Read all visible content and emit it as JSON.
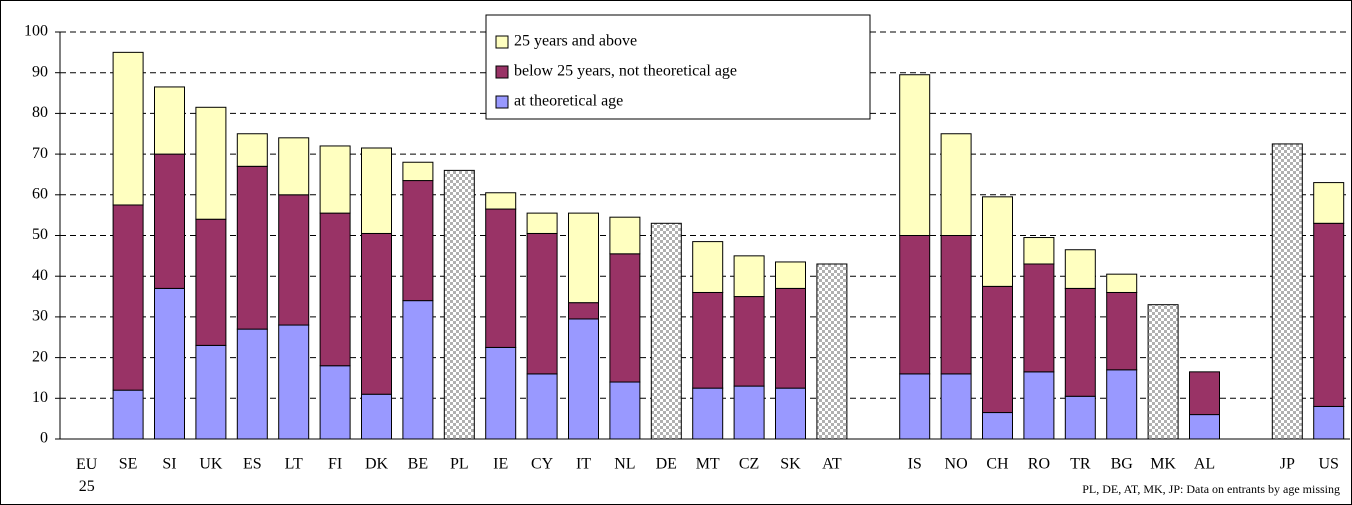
{
  "chart_data": {
    "type": "stacked_bar",
    "categories": [
      "EU 25",
      "SE",
      "SI",
      "UK",
      "ES",
      "LT",
      "FI",
      "DK",
      "BE",
      "PL",
      "IE",
      "CY",
      "IT",
      "NL",
      "DE",
      "MT",
      "CZ",
      "SK",
      "AT",
      null,
      "IS",
      "NO",
      "CH",
      "RO",
      "TR",
      "BG",
      "MK",
      "AL",
      null,
      "JP",
      "US"
    ],
    "series": [
      {
        "name": "at theoretical age",
        "color": "#9999ff",
        "values": [
          null,
          12,
          37,
          23,
          27,
          28,
          18,
          11,
          34,
          null,
          22.5,
          16,
          29.5,
          14,
          null,
          12.5,
          13,
          12.5,
          null,
          null,
          16,
          16,
          6.5,
          16.5,
          10.5,
          17,
          null,
          6,
          null,
          null,
          8
        ]
      },
      {
        "name": "below 25 years, not theoretical age",
        "color": "#993366",
        "values": [
          null,
          45.5,
          33,
          31,
          40,
          32,
          37.5,
          39.5,
          29.5,
          null,
          34,
          34.5,
          4,
          31.5,
          null,
          23.5,
          22,
          24.5,
          null,
          null,
          34,
          34,
          31,
          26.5,
          26.5,
          19,
          null,
          10.5,
          null,
          null,
          45
        ]
      },
      {
        "name": "25 years and above",
        "color": "#ffffc0",
        "values": [
          null,
          37.5,
          16.5,
          27.5,
          8,
          14,
          16.5,
          21,
          4.5,
          null,
          4,
          5,
          22,
          9,
          null,
          12.5,
          10,
          6.5,
          null,
          null,
          39.5,
          25,
          22,
          6.5,
          9.5,
          4.5,
          null,
          null,
          null,
          null,
          10
        ]
      },
      {
        "pattern": "hatched",
        "values": [
          null,
          null,
          null,
          null,
          null,
          null,
          null,
          null,
          null,
          66,
          null,
          null,
          null,
          null,
          53,
          null,
          null,
          null,
          43,
          null,
          null,
          null,
          null,
          null,
          null,
          null,
          33,
          null,
          null,
          72.5,
          null
        ]
      }
    ],
    "ylim": [
      0,
      100
    ],
    "yticks": [
      0,
      10,
      20,
      30,
      40,
      50,
      60,
      70,
      80,
      90,
      100
    ],
    "grid": true,
    "legend": "top",
    "note": "PL, DE, AT, MK, JP: Data on entrants by age missing"
  }
}
